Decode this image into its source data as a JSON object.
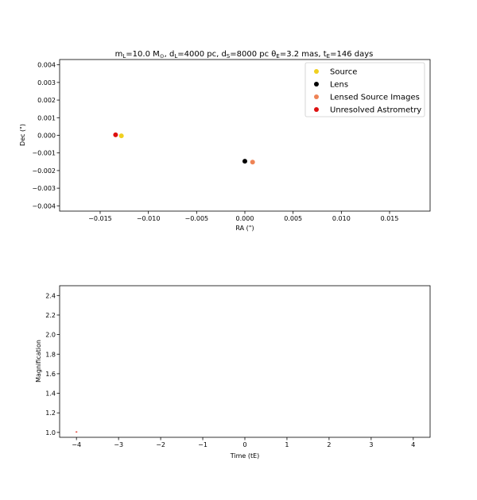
{
  "chart_data": [
    {
      "type": "scatter",
      "title": "m_L=10.0 M_⊙, d_L=4000 pc, d_S=8000 pc θ_E=3.2 mas, t_E=146 days",
      "xlabel": "RA (\")",
      "ylabel": "Dec (\")",
      "xlim": [
        -0.0192,
        0.0192
      ],
      "ylim": [
        -0.0043,
        0.0043
      ],
      "xticks": [
        -0.015,
        -0.01,
        -0.005,
        0.0,
        0.005,
        0.01,
        0.015
      ],
      "xtick_labels": [
        "−0.015",
        "−0.010",
        "−0.005",
        "0.000",
        "0.005",
        "0.010",
        "0.015"
      ],
      "yticks": [
        0.004,
        0.003,
        0.002,
        0.001,
        0.0,
        -0.001,
        -0.002,
        -0.003,
        -0.004
      ],
      "ytick_labels": [
        "0.004",
        "0.003",
        "0.002",
        "0.001",
        "0.000",
        "−0.001",
        "−0.002",
        "−0.003",
        "−0.004"
      ],
      "legend_position": "top-right",
      "series": [
        {
          "name": "Source",
          "color": "#f0d020",
          "points": [
            [
              -0.0128,
              -3e-05
            ]
          ]
        },
        {
          "name": "Lens",
          "color": "#000000",
          "points": [
            [
              0.0,
              -0.00147
            ]
          ]
        },
        {
          "name": "Lensed Source Images",
          "color": "#ee8355",
          "points": [
            [
              0.0008,
              -0.00152
            ]
          ]
        },
        {
          "name": "Unresolved Astrometry",
          "color": "#dd1010",
          "points": [
            [
              -0.0134,
              3e-05
            ]
          ]
        }
      ]
    },
    {
      "type": "line",
      "xlabel": "Time (tE)",
      "ylabel": "Magnification",
      "xlim": [
        -4.4,
        4.4
      ],
      "ylim": [
        0.95,
        2.5
      ],
      "xticks": [
        -4,
        -3,
        -2,
        -1,
        0,
        1,
        2,
        3,
        4
      ],
      "xtick_labels": [
        "−4",
        "−3",
        "−2",
        "−1",
        "0",
        "1",
        "2",
        "3",
        "4"
      ],
      "yticks": [
        2.4,
        2.2,
        2.0,
        1.8,
        1.6,
        1.4,
        1.2,
        1.0
      ],
      "ytick_labels": [
        "2.4",
        "2.2",
        "2.0",
        "1.8",
        "1.6",
        "1.4",
        "1.2",
        "1.0"
      ],
      "series": [
        {
          "color": "#dd2010",
          "x": [
            -4.02,
            -3.98
          ],
          "y": [
            1.005,
            1.005
          ]
        }
      ]
    }
  ]
}
